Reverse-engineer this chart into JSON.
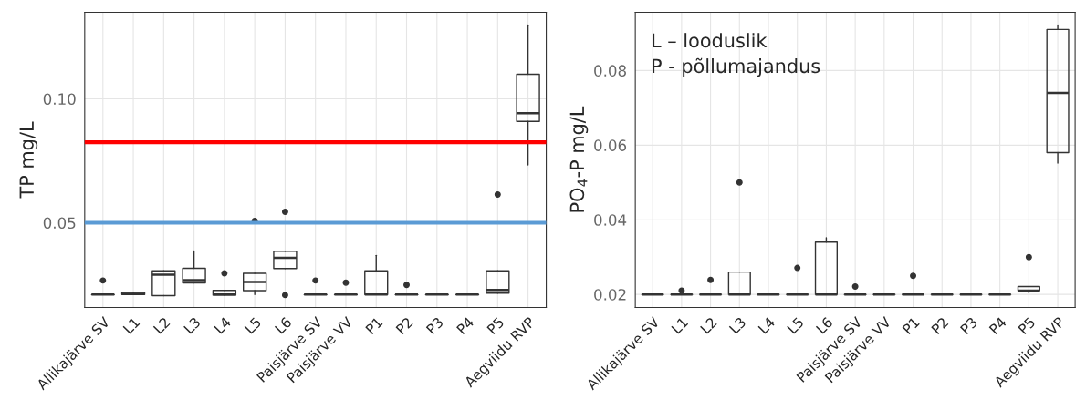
{
  "chart_data": [
    {
      "type": "box",
      "ylabel": "TP mg/L",
      "categories": [
        "Allikajärve SV",
        "L1",
        "L2",
        "L3",
        "L4",
        "L5",
        "L6",
        "Paisjärve SV",
        "Paisjärve VV",
        "P1",
        "P2",
        "P3",
        "P4",
        "P5",
        "Aegviidu RVP"
      ],
      "boxes": [
        {
          "low": 0.021,
          "q1": 0.021,
          "median": 0.021,
          "q3": 0.021,
          "high": 0.021,
          "outliers": [
            0.0267
          ]
        },
        {
          "low": 0.021,
          "q1": 0.021,
          "median": 0.0213,
          "q3": 0.0218,
          "high": 0.0218
        },
        {
          "low": 0.0206,
          "q1": 0.0206,
          "median": 0.029,
          "q3": 0.0306,
          "high": 0.0306
        },
        {
          "low": 0.0257,
          "q1": 0.0257,
          "median": 0.0268,
          "q3": 0.0316,
          "high": 0.0386
        },
        {
          "low": 0.0208,
          "q1": 0.0208,
          "median": 0.021,
          "q3": 0.0227,
          "high": 0.0227,
          "outliers": [
            0.0296
          ]
        },
        {
          "low": 0.021,
          "q1": 0.0226,
          "median": 0.0261,
          "q3": 0.0296,
          "high": 0.0296,
          "outliers": [
            0.0507
          ]
        },
        {
          "low": 0.0315,
          "q1": 0.0315,
          "median": 0.0358,
          "q3": 0.0385,
          "high": 0.0385,
          "outliers": [
            0.0544,
            0.0208
          ]
        },
        {
          "low": 0.021,
          "q1": 0.021,
          "median": 0.021,
          "q3": 0.021,
          "high": 0.021,
          "outliers": [
            0.0267
          ]
        },
        {
          "low": 0.021,
          "q1": 0.021,
          "median": 0.021,
          "q3": 0.021,
          "high": 0.021,
          "outliers": [
            0.0258
          ]
        },
        {
          "low": 0.021,
          "q1": 0.021,
          "median": 0.021,
          "q3": 0.0306,
          "high": 0.0368
        },
        {
          "low": 0.021,
          "q1": 0.021,
          "median": 0.021,
          "q3": 0.021,
          "high": 0.021,
          "outliers": [
            0.0249
          ]
        },
        {
          "low": 0.021,
          "q1": 0.021,
          "median": 0.021,
          "q3": 0.021,
          "high": 0.021
        },
        {
          "low": 0.021,
          "q1": 0.021,
          "median": 0.021,
          "q3": 0.021,
          "high": 0.021
        },
        {
          "low": 0.0216,
          "q1": 0.0216,
          "median": 0.0229,
          "q3": 0.0306,
          "high": 0.0306,
          "outliers": [
            0.0614
          ]
        },
        {
          "low": 0.0733,
          "q1": 0.0909,
          "median": 0.0942,
          "q3": 0.1099,
          "high": 0.1298
        }
      ],
      "ylim": [
        0.0158,
        0.1349
      ],
      "yticks": [
        0.05,
        {
          "value": 0.1,
          "label": "0.10"
        }
      ],
      "grid": true,
      "ref_lines": [
        {
          "axis": "y",
          "value": 0.0825,
          "color": "#ff0000"
        },
        {
          "axis": "y",
          "value": 0.05,
          "color": "#5b9bd5"
        }
      ]
    },
    {
      "type": "box",
      "ylabel": "PO$_{4}$-P mg/L",
      "annotations": [
        "L – looduslik",
        "P - põllumajandus"
      ],
      "categories": [
        "Allikajärve SV",
        "L1",
        "L2",
        "L3",
        "L4",
        "L5",
        "L6",
        "Paisjärve SV",
        "Paisjärve VV",
        "P1",
        "P2",
        "P3",
        "P4",
        "P5",
        "Aegviidu RVP"
      ],
      "boxes": [
        {
          "low": 0.02,
          "q1": 0.02,
          "median": 0.02,
          "q3": 0.02,
          "high": 0.02
        },
        {
          "low": 0.02,
          "q1": 0.02,
          "median": 0.02,
          "q3": 0.02,
          "high": 0.02,
          "outliers": [
            0.021
          ]
        },
        {
          "low": 0.02,
          "q1": 0.02,
          "median": 0.02,
          "q3": 0.02,
          "high": 0.02,
          "outliers": [
            0.0239
          ]
        },
        {
          "low": 0.02,
          "q1": 0.02,
          "median": 0.02,
          "q3": 0.026,
          "high": 0.026,
          "outliers": [
            0.05
          ]
        },
        {
          "low": 0.02,
          "q1": 0.02,
          "median": 0.02,
          "q3": 0.02,
          "high": 0.02
        },
        {
          "low": 0.02,
          "q1": 0.02,
          "median": 0.02,
          "q3": 0.02,
          "high": 0.02,
          "outliers": [
            0.0271
          ]
        },
        {
          "low": 0.02,
          "q1": 0.02,
          "median": 0.02,
          "q3": 0.034,
          "high": 0.0352
        },
        {
          "low": 0.02,
          "q1": 0.02,
          "median": 0.02,
          "q3": 0.02,
          "high": 0.02,
          "outliers": [
            0.0221
          ]
        },
        {
          "low": 0.02,
          "q1": 0.02,
          "median": 0.02,
          "q3": 0.02,
          "high": 0.02
        },
        {
          "low": 0.02,
          "q1": 0.02,
          "median": 0.02,
          "q3": 0.02,
          "high": 0.02,
          "outliers": [
            0.025
          ]
        },
        {
          "low": 0.02,
          "q1": 0.02,
          "median": 0.02,
          "q3": 0.02,
          "high": 0.02
        },
        {
          "low": 0.02,
          "q1": 0.02,
          "median": 0.02,
          "q3": 0.02,
          "high": 0.02
        },
        {
          "low": 0.02,
          "q1": 0.02,
          "median": 0.02,
          "q3": 0.02,
          "high": 0.02
        },
        {
          "low": 0.0204,
          "q1": 0.021,
          "median": 0.021,
          "q3": 0.0221,
          "high": 0.0221,
          "outliers": [
            0.03
          ]
        },
        {
          "low": 0.0552,
          "q1": 0.058,
          "median": 0.074,
          "q3": 0.091,
          "high": 0.0922
        }
      ],
      "ylim": [
        0.0165,
        0.0956
      ],
      "yticks": [
        {
          "value": 0.02,
          "label": "0.02"
        },
        {
          "value": 0.04,
          "label": "0.04"
        },
        {
          "value": 0.06,
          "label": "0.06"
        },
        {
          "value": 0.08,
          "label": "0.08"
        }
      ],
      "grid": true
    }
  ]
}
